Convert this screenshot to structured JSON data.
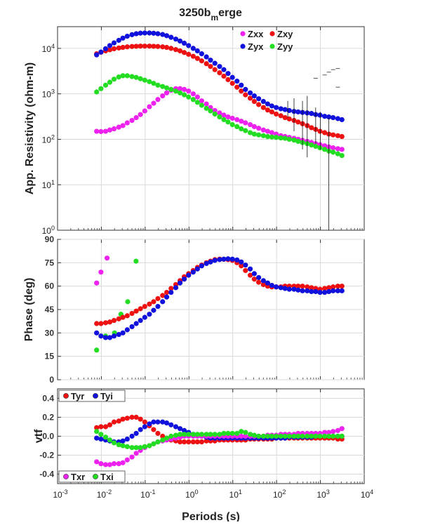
{
  "title_base": "3250b",
  "title_sub": "m",
  "title_rest": "erge",
  "periods": [
    0.0078,
    0.0098,
    0.0125,
    0.0156,
    0.0195,
    0.025,
    0.031,
    0.039,
    0.05,
    0.0625,
    0.078,
    0.098,
    0.125,
    0.156,
    0.195,
    0.25,
    0.31,
    0.39,
    0.5,
    0.625,
    0.78,
    0.98,
    1.25,
    1.56,
    1.95,
    2.5,
    3.1,
    3.9,
    5,
    6.25,
    7.8,
    9.8,
    12.5,
    15.6,
    19.5,
    25,
    31,
    39,
    50,
    62.5,
    78,
    98,
    125,
    156,
    195,
    250,
    310,
    390,
    500,
    625,
    780,
    980,
    1250,
    1560,
    1950,
    2500,
    3100
  ],
  "chart_data": [
    {
      "type": "scatter",
      "scale": "log-log",
      "xlim": [
        0.001,
        10000
      ],
      "ylim": [
        1,
        30000
      ],
      "xlabel": "",
      "ylabel": "App. Resistivity (ohm-m)",
      "yticks": [
        "10^0",
        "10^1",
        "10^2",
        "10^3",
        "10^4"
      ],
      "grid": true,
      "legend": "top-right",
      "series": [
        {
          "name": "Zxx",
          "color": "#ee22ee",
          "values": [
            150,
            148,
            150,
            160,
            170,
            185,
            200,
            230,
            260,
            300,
            350,
            420,
            520,
            620,
            750,
            900,
            1050,
            1200,
            1300,
            1300,
            1250,
            1150,
            1000,
            850,
            700,
            600,
            500,
            430,
            380,
            340,
            310,
            290,
            270,
            250,
            230,
            210,
            190,
            175,
            160,
            150,
            140,
            130,
            120,
            115,
            110,
            105,
            100,
            95,
            90,
            85,
            80,
            76,
            72,
            68,
            65,
            62,
            60
          ]
        },
        {
          "name": "Zxy",
          "color": "#ee1111",
          "values": [
            7600,
            8200,
            8800,
            9300,
            9800,
            10200,
            10500,
            10800,
            11000,
            11100,
            11200,
            11200,
            11200,
            11100,
            11000,
            10800,
            10500,
            10000,
            9400,
            8800,
            8100,
            7400,
            6700,
            6000,
            5300,
            4600,
            4000,
            3400,
            2900,
            2450,
            2050,
            1700,
            1400,
            1150,
            950,
            800,
            680,
            580,
            500,
            440,
            400,
            360,
            330,
            300,
            280,
            260,
            240,
            220,
            200,
            180,
            165,
            150,
            140,
            130,
            125,
            120,
            115
          ]
        },
        {
          "name": "Zyx",
          "color": "#1111dd",
          "values": [
            7200,
            8300,
            9800,
            11500,
            13200,
            15000,
            16800,
            18500,
            20000,
            21000,
            21600,
            21800,
            21800,
            21500,
            21000,
            20200,
            19000,
            17500,
            16000,
            14500,
            13000,
            11500,
            10000,
            8800,
            7600,
            6500,
            5500,
            4700,
            4000,
            3400,
            2800,
            2300,
            1900,
            1550,
            1250,
            1050,
            900,
            780,
            680,
            600,
            540,
            500,
            470,
            450,
            430,
            410,
            400,
            390,
            380,
            370,
            350,
            340,
            320,
            310,
            300,
            285,
            270
          ]
        },
        {
          "name": "Zyy",
          "color": "#22dd22",
          "values": [
            1100,
            1300,
            1550,
            1800,
            2100,
            2350,
            2500,
            2500,
            2400,
            2300,
            2150,
            2000,
            1850,
            1700,
            1550,
            1450,
            1350,
            1250,
            1150,
            1050,
            950,
            850,
            750,
            650,
            560,
            480,
            420,
            360,
            310,
            270,
            240,
            210,
            190,
            170,
            155,
            140,
            130,
            125,
            120,
            115,
            112,
            110,
            107,
            105,
            100,
            96,
            90,
            85,
            80,
            75,
            70,
            65,
            60,
            55,
            52,
            48,
            44
          ]
        }
      ]
    },
    {
      "type": "scatter",
      "scale": "log-x",
      "xlim": [
        0.001,
        10000
      ],
      "ylim": [
        0,
        90
      ],
      "xlabel": "",
      "ylabel": "Phase (deg)",
      "yticks": [
        0,
        15,
        30,
        45,
        60,
        75,
        90
      ],
      "grid": true,
      "series": [
        {
          "name": "Zxx",
          "color": "#ee22ee",
          "x": [
            0.0078,
            0.0098,
            0.0135
          ],
          "values": [
            62,
            69,
            78
          ]
        },
        {
          "name": "Zyy",
          "color": "#22dd22",
          "x": [
            0.0078,
            0.0125,
            0.02,
            0.028,
            0.04,
            0.062
          ],
          "values": [
            19,
            28,
            30,
            42,
            50,
            76
          ]
        },
        {
          "name": "Zxy",
          "color": "#ee1111",
          "values": [
            36,
            36,
            36.5,
            37,
            38,
            39,
            40,
            41,
            42.5,
            44,
            45.5,
            47,
            48.5,
            50,
            52,
            54,
            56,
            58.5,
            61,
            63.5,
            66,
            68,
            70,
            72,
            73.5,
            75,
            76,
            77,
            77.3,
            77.2,
            77,
            76.5,
            75,
            73,
            70,
            67,
            64.5,
            62.5,
            61,
            60,
            59.5,
            59.5,
            59.5,
            60,
            60,
            60,
            60,
            60,
            59.5,
            59,
            58.5,
            58,
            58.5,
            59,
            59.5,
            60,
            60
          ]
        },
        {
          "name": "Zyx",
          "color": "#1111dd",
          "values": [
            30,
            28,
            27,
            27,
            28,
            29,
            30,
            32,
            34,
            36,
            38,
            40,
            42,
            44.5,
            47,
            50,
            53,
            56,
            59,
            62,
            64.5,
            67,
            69,
            71,
            73,
            74.5,
            75.5,
            76.5,
            77,
            77.3,
            77.5,
            77.3,
            76.8,
            75.5,
            73.5,
            71,
            68,
            65.5,
            63.5,
            62,
            60.5,
            59.5,
            59,
            58.5,
            58,
            58,
            57.5,
            57,
            57,
            56.5,
            56.5,
            56,
            56,
            56.5,
            57,
            57,
            57
          ]
        }
      ]
    },
    {
      "type": "scatter",
      "scale": "log-x",
      "xlim": [
        0.001,
        10000
      ],
      "ylim": [
        -0.5,
        0.5
      ],
      "xlabel": "Periods (s)",
      "ylabel": "vtf",
      "xticks": [
        "10^-3",
        "10^-2",
        "10^-1",
        "10^0",
        "10^1",
        "10^2",
        "10^3",
        "10^4"
      ],
      "yticks": [
        -0.4,
        -0.2,
        0.0,
        0.2,
        0.4
      ],
      "grid": true,
      "legends": [
        [
          "Tyr",
          "Tyi"
        ],
        [
          "Txr",
          "Txi"
        ]
      ],
      "series": [
        {
          "name": "Tyr",
          "color": "#ee1111",
          "values": [
            0.09,
            0.1,
            0.1,
            0.12,
            0.15,
            0.16,
            0.18,
            0.19,
            0.2,
            0.2,
            0.18,
            0.15,
            0.11,
            0.07,
            0.03,
            0.0,
            -0.02,
            -0.04,
            -0.05,
            -0.06,
            -0.06,
            -0.06,
            -0.06,
            -0.06,
            -0.06,
            -0.05,
            -0.05,
            -0.05,
            -0.04,
            -0.04,
            -0.04,
            -0.04,
            -0.04,
            -0.04,
            -0.04,
            -0.03,
            -0.03,
            -0.03,
            -0.03,
            -0.03,
            -0.03,
            -0.02,
            -0.02,
            -0.02,
            -0.02,
            -0.02,
            -0.02,
            -0.02,
            -0.02,
            -0.02,
            -0.02,
            -0.02,
            -0.02,
            -0.02,
            -0.02,
            -0.03,
            -0.03
          ]
        },
        {
          "name": "Tyi",
          "color": "#1111dd",
          "values": [
            -0.02,
            -0.03,
            -0.04,
            -0.05,
            -0.06,
            -0.06,
            -0.05,
            -0.03,
            0.0,
            0.03,
            0.07,
            0.1,
            0.13,
            0.15,
            0.15,
            0.15,
            0.14,
            0.12,
            0.1,
            0.08,
            0.06,
            0.04,
            0.02,
            0.01,
            0.0,
            -0.01,
            -0.02,
            -0.02,
            -0.02,
            -0.02,
            -0.02,
            -0.02,
            -0.02,
            -0.02,
            -0.02,
            -0.02,
            -0.02,
            -0.02,
            -0.02,
            -0.02,
            -0.02,
            -0.02,
            -0.02,
            -0.02,
            -0.01,
            -0.01,
            -0.01,
            -0.01,
            -0.01,
            -0.01,
            0.0,
            0.0,
            0.0,
            0.0,
            0.0,
            0.0,
            0.0
          ]
        },
        {
          "name": "Txr",
          "color": "#ee22ee",
          "values": [
            -0.27,
            -0.29,
            -0.3,
            -0.3,
            -0.29,
            -0.29,
            -0.28,
            -0.25,
            -0.22,
            -0.18,
            -0.15,
            -0.12,
            -0.1,
            -0.08,
            -0.06,
            -0.05,
            -0.04,
            -0.03,
            -0.02,
            -0.01,
            0.0,
            0.0,
            0.0,
            0.0,
            0.0,
            0.0,
            0.0,
            0.0,
            0.0,
            0.0,
            0.0,
            0.0,
            0.0,
            0.0,
            0.0,
            0.0,
            0.0,
            0.0,
            0.0,
            0.01,
            0.01,
            0.01,
            0.02,
            0.02,
            0.02,
            0.02,
            0.03,
            0.03,
            0.03,
            0.03,
            0.03,
            0.03,
            0.04,
            0.04,
            0.05,
            0.06,
            0.08
          ]
        },
        {
          "name": "Txi",
          "color": "#22dd22",
          "values": [
            0.05,
            0.02,
            -0.01,
            -0.04,
            -0.07,
            -0.09,
            -0.1,
            -0.11,
            -0.12,
            -0.12,
            -0.12,
            -0.11,
            -0.1,
            -0.08,
            -0.06,
            -0.04,
            -0.02,
            0.0,
            0.01,
            0.02,
            0.02,
            0.02,
            0.02,
            0.02,
            0.02,
            0.02,
            0.02,
            0.02,
            0.02,
            0.03,
            0.03,
            0.03,
            0.03,
            0.05,
            0.04,
            0.02,
            0.01,
            0.0,
            0.0,
            0.0,
            0.0,
            0.0,
            0.0,
            0.0,
            0.0,
            0.0,
            0.0,
            0.0,
            0.0,
            0.0,
            0.0,
            0.0,
            0.0,
            0.0,
            0.0,
            0.0,
            0.0
          ]
        }
      ]
    }
  ]
}
